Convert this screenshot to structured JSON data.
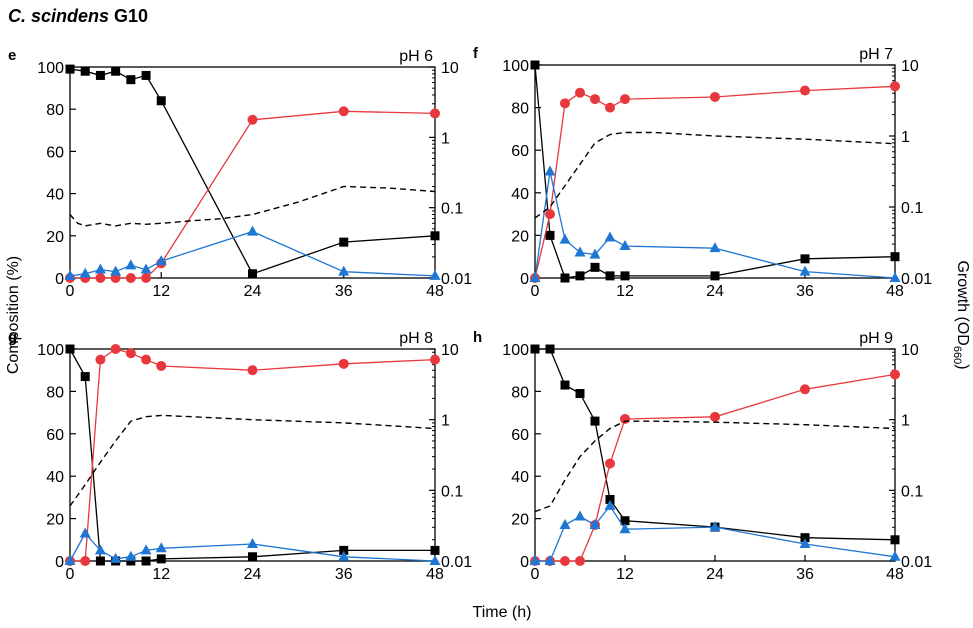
{
  "figure": {
    "title_species": "C. scindens",
    "title_strain": "G10",
    "xlabel": "Time (h)",
    "ylabel_left": "Composition (%)",
    "ylabel_right": "Growth (OD",
    "ylabel_right_sub": "660",
    "ylabel_right_close": ")"
  },
  "chart_data": [
    {
      "type": "line",
      "panel": "e",
      "annotation": "pH 6",
      "xlim": [
        0,
        48
      ],
      "ylim": [
        0,
        100
      ],
      "y2lim": [
        0.01,
        10
      ],
      "y2scale": "log",
      "xticks": [
        0,
        12,
        24,
        36,
        48
      ],
      "yticks": [
        0,
        20,
        40,
        60,
        80,
        100
      ],
      "y2ticks": [
        0.01,
        0.1,
        1,
        10
      ],
      "y2ticklabels": [
        "0.01",
        "0.1",
        "1",
        "10"
      ],
      "series": [
        {
          "marker": "square",
          "color": "#000000",
          "x": [
            0,
            2,
            4,
            6,
            8,
            10,
            12,
            24,
            36,
            48
          ],
          "y": [
            99,
            98,
            96,
            98,
            94,
            96,
            84,
            2,
            17,
            20
          ]
        },
        {
          "marker": "circle",
          "color": "#e8383d",
          "x": [
            0,
            2,
            4,
            6,
            8,
            10,
            12,
            24,
            36,
            48
          ],
          "y": [
            0,
            0,
            0,
            0,
            0,
            0,
            7,
            75,
            79,
            78
          ]
        },
        {
          "marker": "triangle",
          "color": "#1f77d4",
          "x": [
            0,
            2,
            4,
            6,
            8,
            10,
            12,
            24,
            36,
            48
          ],
          "y": [
            1,
            2,
            4,
            3,
            6,
            4,
            8,
            22,
            3,
            1
          ]
        },
        {
          "marker": "none",
          "dashed": true,
          "axis": "right",
          "color": "#000000",
          "x": [
            0,
            1,
            2,
            4,
            6,
            8,
            10,
            12,
            16,
            20,
            24,
            30,
            36,
            42,
            48
          ],
          "y": [
            0.08,
            0.06,
            0.055,
            0.06,
            0.055,
            0.06,
            0.058,
            0.06,
            0.065,
            0.07,
            0.08,
            0.12,
            0.2,
            0.19,
            0.17
          ]
        }
      ]
    },
    {
      "type": "line",
      "panel": "f",
      "annotation": "pH 7",
      "xlim": [
        0,
        48
      ],
      "ylim": [
        0,
        100
      ],
      "y2lim": [
        0.01,
        10
      ],
      "y2scale": "log",
      "xticks": [
        0,
        12,
        24,
        36,
        48
      ],
      "yticks": [
        0,
        20,
        40,
        60,
        80,
        100
      ],
      "y2ticks": [
        0.01,
        0.1,
        1,
        10
      ],
      "y2ticklabels": [
        "0.01",
        "0.1",
        "1",
        "10"
      ],
      "series": [
        {
          "marker": "square",
          "color": "#000000",
          "x": [
            0,
            2,
            4,
            6,
            8,
            10,
            12,
            24,
            36,
            48
          ],
          "y": [
            100,
            20,
            0,
            1,
            5,
            1,
            1,
            1,
            9,
            10
          ]
        },
        {
          "marker": "circle",
          "color": "#e8383d",
          "x": [
            0,
            2,
            4,
            6,
            8,
            10,
            12,
            24,
            36,
            48
          ],
          "y": [
            0,
            30,
            82,
            87,
            84,
            80,
            84,
            85,
            88,
            90
          ]
        },
        {
          "marker": "triangle",
          "color": "#1f77d4",
          "x": [
            0,
            2,
            4,
            6,
            8,
            10,
            12,
            24,
            36,
            48
          ],
          "y": [
            0,
            50,
            18,
            12,
            11,
            19,
            15,
            14,
            3,
            0
          ]
        },
        {
          "marker": "none",
          "dashed": true,
          "axis": "right",
          "color": "#000000",
          "x": [
            0,
            2,
            4,
            6,
            8,
            10,
            12,
            16,
            24,
            36,
            48
          ],
          "y": [
            0.07,
            0.1,
            0.2,
            0.4,
            0.8,
            1.05,
            1.12,
            1.12,
            1.0,
            0.9,
            0.78
          ]
        }
      ]
    },
    {
      "type": "line",
      "panel": "g",
      "annotation": "pH 8",
      "xlim": [
        0,
        48
      ],
      "ylim": [
        0,
        100
      ],
      "y2lim": [
        0.01,
        10
      ],
      "y2scale": "log",
      "xticks": [
        0,
        12,
        24,
        36,
        48
      ],
      "yticks": [
        0,
        20,
        40,
        60,
        80,
        100
      ],
      "y2ticks": [
        0.01,
        0.1,
        1,
        10
      ],
      "y2ticklabels": [
        "0.01",
        "0.1",
        "1",
        "10"
      ],
      "series": [
        {
          "marker": "square",
          "color": "#000000",
          "x": [
            0,
            2,
            4,
            6,
            8,
            10,
            12,
            24,
            36,
            48
          ],
          "y": [
            100,
            87,
            0,
            0,
            0,
            0,
            1,
            2,
            5,
            5
          ]
        },
        {
          "marker": "circle",
          "color": "#e8383d",
          "x": [
            0,
            2,
            4,
            6,
            8,
            10,
            12,
            24,
            36,
            48
          ],
          "y": [
            0,
            0,
            95,
            100,
            98,
            95,
            92,
            90,
            93,
            95
          ]
        },
        {
          "marker": "triangle",
          "color": "#1f77d4",
          "x": [
            0,
            2,
            4,
            6,
            8,
            10,
            12,
            24,
            36,
            48
          ],
          "y": [
            0,
            13,
            5,
            1,
            2,
            5,
            6,
            8,
            2,
            0
          ]
        },
        {
          "marker": "none",
          "dashed": true,
          "axis": "right",
          "color": "#000000",
          "x": [
            0,
            2,
            4,
            6,
            8,
            10,
            12,
            16,
            24,
            36,
            48
          ],
          "y": [
            0.06,
            0.12,
            0.25,
            0.5,
            0.95,
            1.1,
            1.15,
            1.1,
            1.0,
            0.9,
            0.75
          ]
        }
      ]
    },
    {
      "type": "line",
      "panel": "h",
      "annotation": "pH 9",
      "xlim": [
        0,
        48
      ],
      "ylim": [
        0,
        100
      ],
      "y2lim": [
        0.01,
        10
      ],
      "y2scale": "log",
      "xticks": [
        0,
        12,
        24,
        36,
        48
      ],
      "yticks": [
        0,
        20,
        40,
        60,
        80,
        100
      ],
      "y2ticks": [
        0.01,
        0.1,
        1,
        10
      ],
      "y2ticklabels": [
        "0.01",
        "0.1",
        "1",
        "10"
      ],
      "series": [
        {
          "marker": "square",
          "color": "#000000",
          "x": [
            0,
            2,
            4,
            6,
            8,
            10,
            12,
            24,
            36,
            48
          ],
          "y": [
            100,
            100,
            83,
            79,
            66,
            29,
            19,
            16,
            11,
            10
          ]
        },
        {
          "marker": "circle",
          "color": "#e8383d",
          "x": [
            0,
            2,
            4,
            6,
            8,
            10,
            12,
            24,
            36,
            48
          ],
          "y": [
            0,
            0,
            0,
            0,
            17,
            46,
            67,
            68,
            81,
            88
          ]
        },
        {
          "marker": "triangle",
          "color": "#1f77d4",
          "x": [
            0,
            2,
            4,
            6,
            8,
            10,
            12,
            24,
            36,
            48
          ],
          "y": [
            0,
            0,
            17,
            21,
            17,
            26,
            15,
            16,
            8,
            2
          ]
        },
        {
          "marker": "none",
          "dashed": true,
          "axis": "right",
          "color": "#000000",
          "x": [
            0,
            2,
            4,
            6,
            8,
            10,
            12,
            16,
            24,
            36,
            48
          ],
          "y": [
            0.05,
            0.06,
            0.14,
            0.3,
            0.5,
            0.75,
            0.95,
            0.95,
            0.92,
            0.85,
            0.75
          ]
        }
      ]
    }
  ]
}
